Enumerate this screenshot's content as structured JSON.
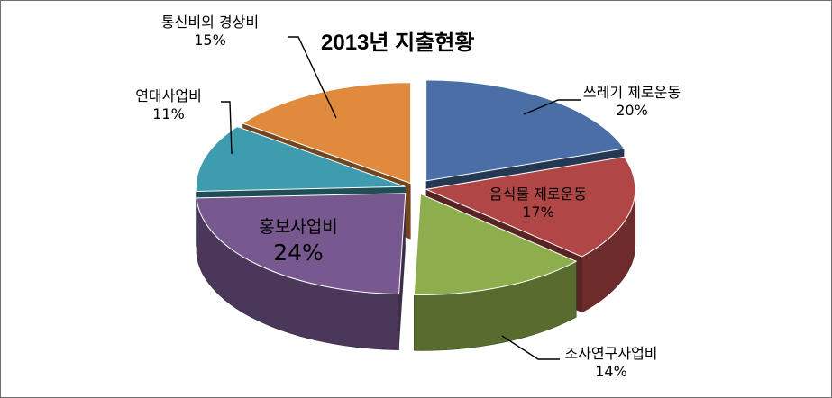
{
  "chart_data": {
    "type": "pie",
    "title": "2013년 지출현황",
    "slices": [
      {
        "name": "쓰레기 제로운동",
        "percent": "20%",
        "value": 20,
        "color": "#4a6fa6"
      },
      {
        "name": "음식물 제로운동",
        "percent": "17%",
        "value": 17,
        "color": "#b04645"
      },
      {
        "name": "조사연구사업비",
        "percent": "14%",
        "value": 14,
        "color": "#8eae4e"
      },
      {
        "name": "홍보사업비",
        "percent": "24%",
        "value": 24,
        "color": "#77598f"
      },
      {
        "name": "연대사업비",
        "percent": "11%",
        "value": 11,
        "color": "#3f9bae"
      },
      {
        "name": "통신비외 경상비",
        "percent": "15%",
        "value": 15,
        "color": "#e08a3d"
      }
    ],
    "legend": "none",
    "style": "3d-exploded"
  }
}
